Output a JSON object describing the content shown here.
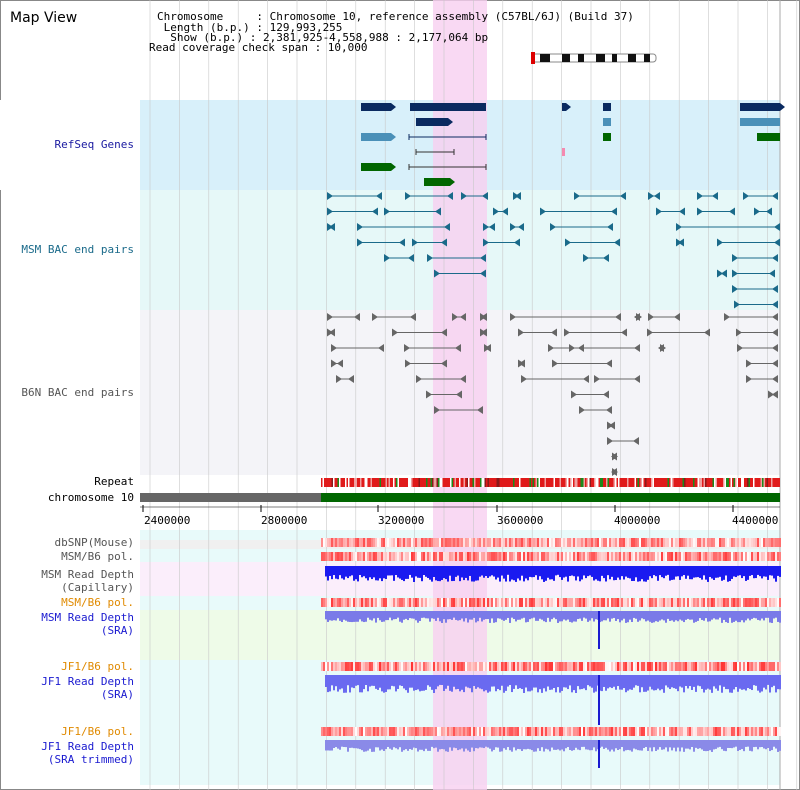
{
  "title": "Map View",
  "header": {
    "chromosome": "Chromosome     : Chromosome 10, reference assembly (C57BL/6J) (Build 37)",
    "length": " Length (b.p.) : 129,993,255",
    "show": "  Show (b.p.) : 2,381,925-4,558,988 : 2,177,064 bp",
    "coverage": "Read coverage check span : 10,000"
  },
  "tracks": {
    "refseq": "RefSeq Genes",
    "msm_bac": "MSM BAC end pairs",
    "b6n_bac": "B6N BAC end pairs",
    "repeat": "Repeat",
    "chromosome": "chromosome 10",
    "dbsnp": "dbSNP(Mouse)",
    "msm_b6_pol_1": "MSM/B6 pol.",
    "msm_read_depth_cap_1": "MSM Read Depth",
    "msm_read_depth_cap_2": "(Capillary)",
    "msm_b6_pol_2": "MSM/B6 pol.",
    "msm_read_depth_sra_1": "MSM Read Depth",
    "msm_read_depth_sra_2": "(SRA)",
    "jf1_b6_pol_1": "JF1/B6 pol.",
    "jf1_read_depth_sra_1": "JF1 Read Depth",
    "jf1_read_depth_sra_2": "(SRA)",
    "jf1_b6_pol_2": "JF1/B6 pol.",
    "jf1_read_depth_trim_1": "JF1 Read Depth",
    "jf1_read_depth_trim_2": "(SRA trimmed)"
  },
  "axis": {
    "ticks": [
      "2400000",
      "2800000",
      "3200000",
      "3600000",
      "4000000",
      "4400000"
    ]
  },
  "colors": {
    "refseq_label": "#1a1aa0",
    "msm_bac_label": "#1a6a8a",
    "b6n_bac_label": "#555555",
    "pol_label": "#e08a00",
    "depth_label": "#1a1ad0",
    "refseq_bg": "#d8f0fa",
    "msm_bg": "#e6f8f8",
    "b6n_bg": "#f4f4f8",
    "highlight": "#f8d0f0",
    "chromosome_bar": "#006600",
    "chromosome_gray": "#666666"
  }
}
